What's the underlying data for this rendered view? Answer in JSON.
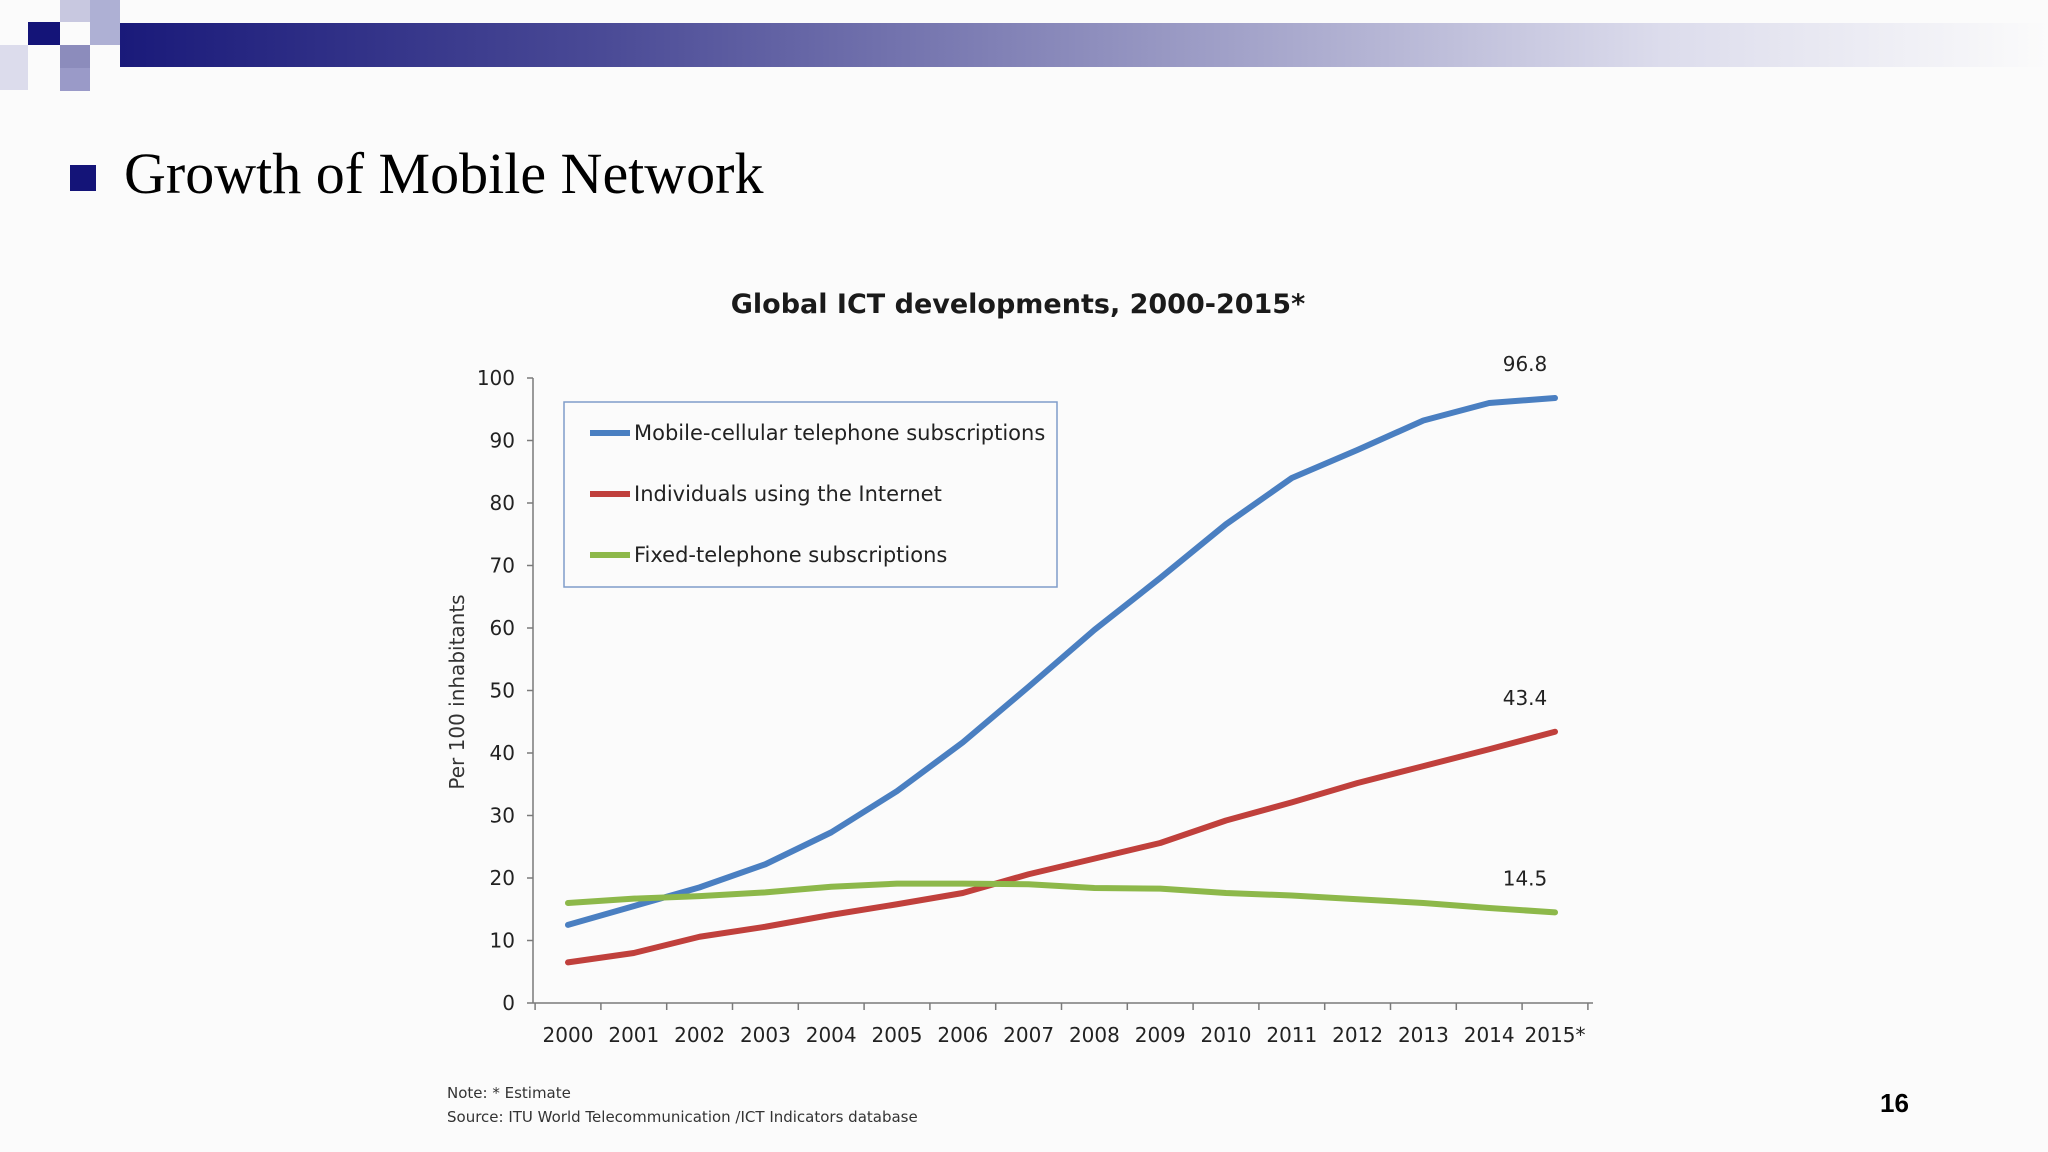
{
  "slide": {
    "title": "Growth of Mobile Network",
    "page_number": "16"
  },
  "colors": {
    "accent": "#141478",
    "mobile": "#4a7fc1",
    "internet": "#c0403c",
    "fixed": "#8db84a"
  },
  "chart_data": {
    "type": "line",
    "title": "Global ICT developments, 2000-2015*",
    "ylabel": "Per 100 inhabitants",
    "xlabel": "",
    "ylim": [
      0,
      100
    ],
    "yticks": [
      "0",
      "10",
      "20",
      "30",
      "40",
      "50",
      "60",
      "70",
      "80",
      "90",
      "100"
    ],
    "categories": [
      "2000",
      "2001",
      "2002",
      "2003",
      "2004",
      "2005",
      "2006",
      "2007",
      "2008",
      "2009",
      "2010",
      "2011",
      "2012",
      "2013",
      "2014",
      "2015*"
    ],
    "series": [
      {
        "name": "Mobile-cellular telephone subscriptions",
        "color": "#4a7fc1",
        "values": [
          12.5,
          15.5,
          18.5,
          22.2,
          27.3,
          33.9,
          41.7,
          50.6,
          59.7,
          68.0,
          76.6,
          84.0,
          88.5,
          93.2,
          96.0,
          96.8
        ],
        "end_label": "96.8"
      },
      {
        "name": "Individuals using the Internet",
        "color": "#c0403c",
        "values": [
          6.5,
          8.0,
          10.6,
          12.2,
          14.1,
          15.8,
          17.6,
          20.6,
          23.1,
          25.6,
          29.2,
          32.1,
          35.2,
          37.9,
          40.6,
          43.4
        ],
        "end_label": "43.4"
      },
      {
        "name": "Fixed-telephone subscriptions",
        "color": "#8db84a",
        "values": [
          16.0,
          16.7,
          17.1,
          17.7,
          18.6,
          19.1,
          19.1,
          19.0,
          18.4,
          18.3,
          17.6,
          17.2,
          16.6,
          16.0,
          15.2,
          14.5
        ],
        "end_label": "14.5"
      }
    ],
    "legend_position": "top-left",
    "grid": false,
    "note": "Note: * Estimate",
    "source": "Source:  ITU World Telecommunication /ICT Indicators database"
  }
}
